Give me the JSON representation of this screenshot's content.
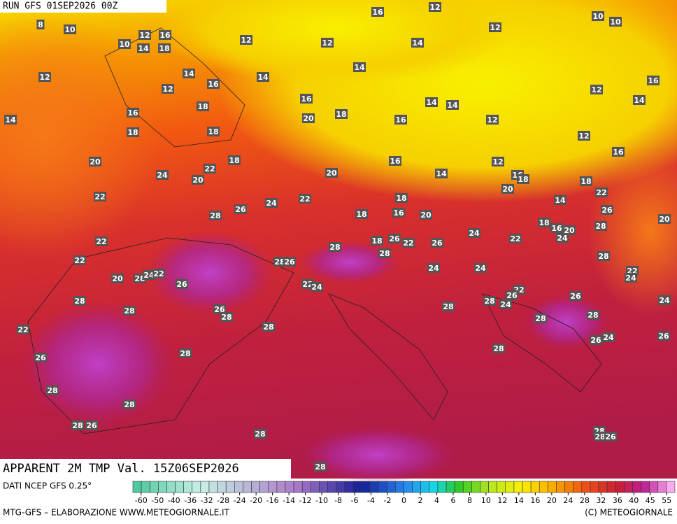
{
  "header": {
    "run": "RUN GFS 01SEP2026 00Z",
    "field": "APPARENT 2M TMP Val. 15Z06SEP2026"
  },
  "footer": {
    "source": "DATI NCEP GFS 0.25°",
    "credit": "MTG-GFS – ELABORAZIONE WWW.METEOGIORNALE.IT",
    "copyright": "(C) METEOGIORNALE"
  },
  "colorbar": {
    "ticks": [
      -60,
      -50,
      -40,
      -36,
      -32,
      -28,
      -24,
      -20,
      -16,
      -14,
      -12,
      -10,
      -8,
      -6,
      -4,
      -2,
      0,
      2,
      4,
      6,
      8,
      10,
      12,
      14,
      16,
      20,
      24,
      28,
      32,
      36,
      40,
      45,
      55
    ]
  },
  "map_labels": [
    8,
    10,
    16,
    12,
    10,
    10,
    10,
    12,
    16,
    14,
    18,
    12,
    12,
    14,
    12,
    12,
    14,
    14,
    14,
    12,
    16,
    12,
    16,
    14,
    16,
    18,
    14,
    14,
    16,
    20,
    18,
    16,
    12,
    14,
    18,
    18,
    12,
    16,
    20,
    18,
    22,
    16,
    12,
    24,
    20,
    20,
    14,
    16,
    18,
    18,
    22,
    20,
    22,
    24,
    22,
    18,
    14,
    26,
    28,
    18,
    16,
    20,
    26,
    20,
    22,
    28,
    18,
    26,
    22,
    26,
    24,
    22,
    18,
    16,
    20,
    24,
    28,
    28,
    22,
    28,
    26,
    24,
    24,
    28,
    22,
    24,
    20,
    28,
    24,
    22,
    26,
    22,
    24,
    22,
    26,
    28,
    28,
    26,
    28,
    28,
    28,
    24,
    26,
    24,
    22,
    28,
    28,
    28,
    26,
    28,
    28,
    26,
    24,
    26,
    28,
    28,
    28,
    26,
    28,
    28,
    28,
    26,
    28
  ]
}
